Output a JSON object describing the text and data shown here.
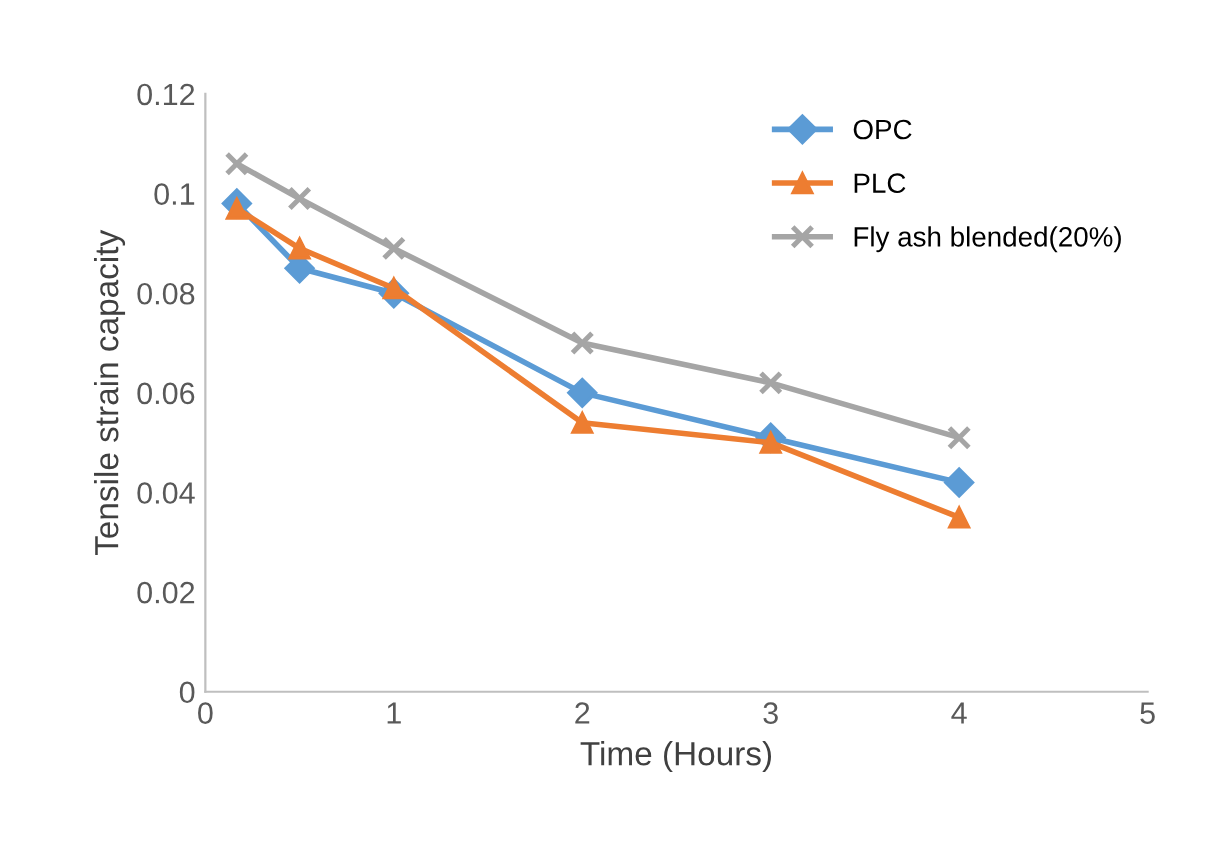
{
  "chart_data": {
    "type": "line",
    "xlabel": "Time (Hours)",
    "ylabel": "Tensile strain capacity",
    "xlim": [
      0,
      5
    ],
    "xticks": [
      0,
      1,
      2,
      3,
      4,
      5
    ],
    "ylim": [
      0,
      0.12
    ],
    "yticks": [
      0,
      0.02,
      0.04,
      0.06,
      0.08,
      0.1,
      0.12
    ],
    "grid": false,
    "legend": "top right",
    "series": [
      {
        "name": "OPC",
        "color": "#5b9bd5",
        "marker": "diamond",
        "x": [
          0.167,
          0.5,
          1,
          2,
          3,
          4
        ],
        "values": [
          0.098,
          0.085,
          0.08,
          0.06,
          0.051,
          0.042
        ]
      },
      {
        "name": "PLC",
        "color": "#ed7d31",
        "marker": "triangle",
        "x": [
          0.167,
          0.5,
          1,
          2,
          3,
          4
        ],
        "values": [
          0.097,
          0.089,
          0.081,
          0.054,
          0.05,
          0.035
        ]
      },
      {
        "name": "Fly ash blended(20%)",
        "color": "#a5a5a5",
        "marker": "cross",
        "x": [
          0.167,
          0.5,
          1,
          2,
          3,
          4
        ],
        "values": [
          0.106,
          0.099,
          0.089,
          0.07,
          0.062,
          0.051
        ]
      }
    ]
  }
}
